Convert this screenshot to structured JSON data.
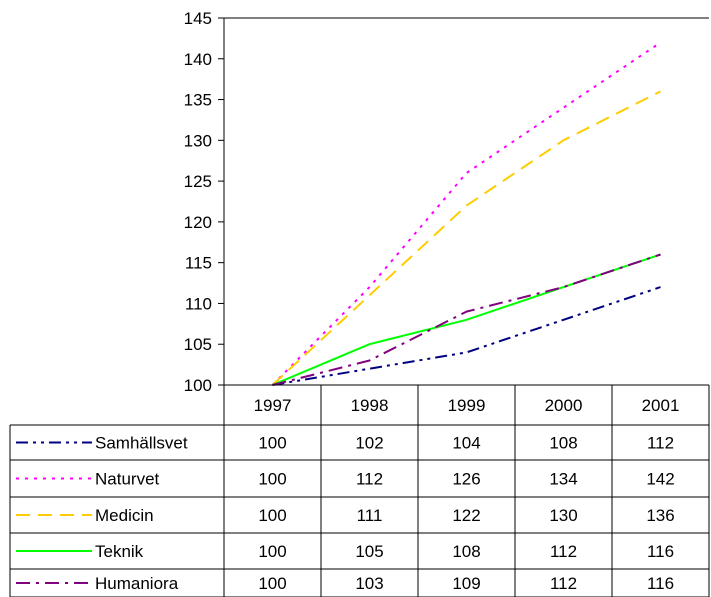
{
  "chart_data": {
    "type": "line",
    "title": "",
    "xlabel": "",
    "ylabel": "",
    "categories": [
      "1997",
      "1998",
      "1999",
      "2000",
      "2001"
    ],
    "ylim": [
      100,
      145
    ],
    "yticks": [
      "100",
      "105",
      "110",
      "115",
      "120",
      "125",
      "130",
      "135",
      "140",
      "145"
    ],
    "grid": false,
    "legend": "data-table",
    "series": [
      {
        "name": "Samhällsvet",
        "color": "#000080",
        "dash": "dash-dot-dot",
        "values": [
          100,
          102,
          104,
          108,
          112
        ]
      },
      {
        "name": "Naturvet",
        "color": "#ff00ff",
        "dash": "dot",
        "values": [
          100,
          112,
          126,
          134,
          142
        ]
      },
      {
        "name": "Medicin",
        "color": "#ffcc00",
        "dash": "dash",
        "values": [
          100,
          111,
          122,
          130,
          136
        ]
      },
      {
        "name": "Teknik",
        "color": "#00ff00",
        "dash": "solid",
        "values": [
          100,
          105,
          108,
          112,
          116
        ]
      },
      {
        "name": "Humaniora",
        "color": "#800080",
        "dash": "dash-dot",
        "values": [
          100,
          103,
          109,
          112,
          116
        ]
      }
    ]
  }
}
